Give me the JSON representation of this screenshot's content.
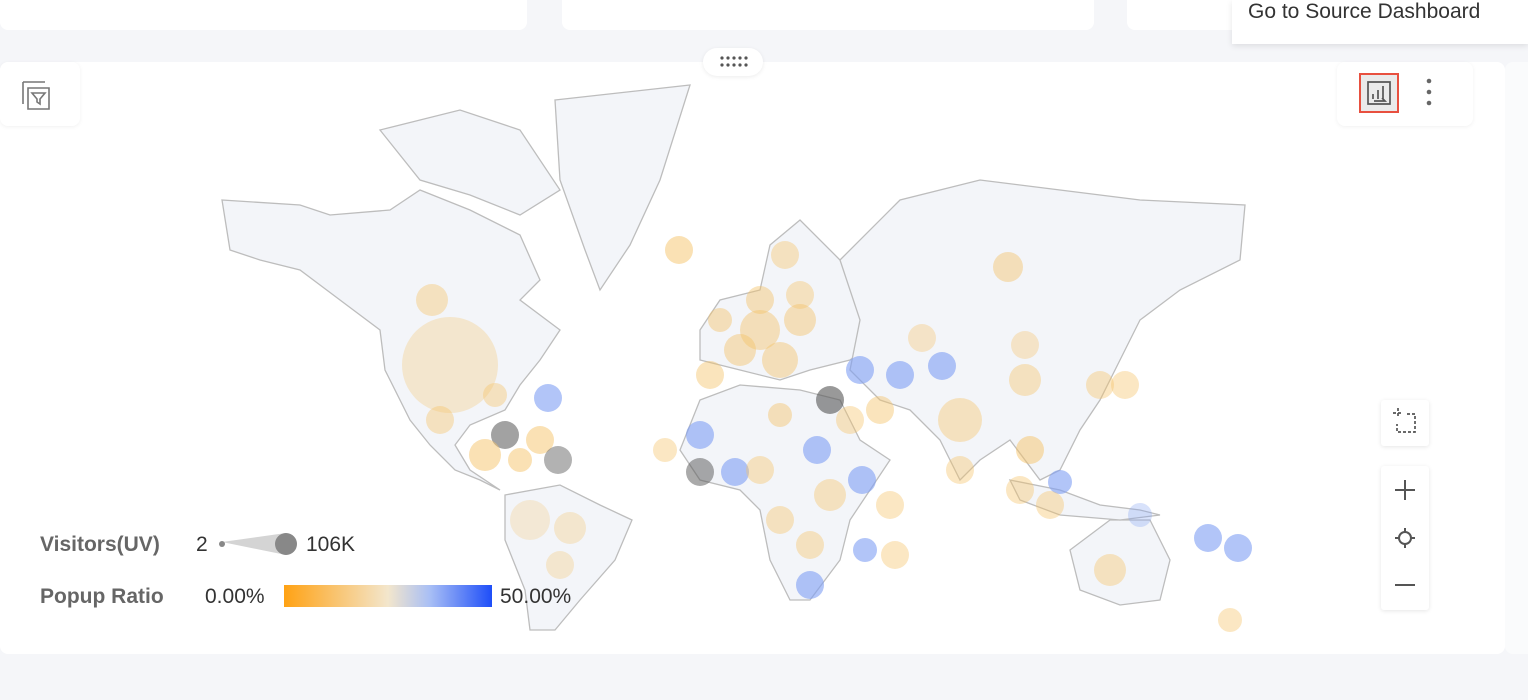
{
  "tooltip": "Go to Source Dashboard",
  "legend": {
    "size": {
      "title": "Visitors(UV)",
      "min": "2",
      "max": "106K"
    },
    "color": {
      "title": "Popup Ratio",
      "min": "0.00%",
      "max": "50.00%"
    }
  }
}
